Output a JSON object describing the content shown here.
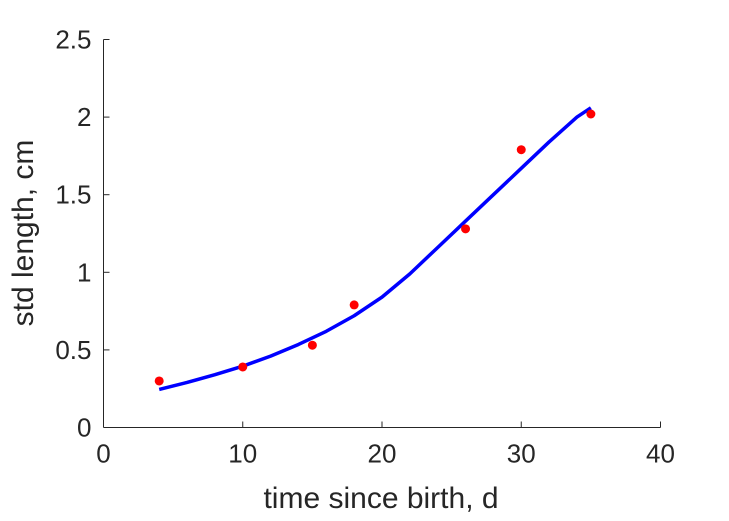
{
  "chart_data": {
    "type": "scatter",
    "xlabel": "time since birth, d",
    "ylabel": "std length, cm",
    "xlim": [
      0,
      40
    ],
    "ylim": [
      0,
      2.5
    ],
    "xticks": [
      "0",
      "10",
      "20",
      "30",
      "40"
    ],
    "yticks": [
      "0",
      "0.5",
      "1",
      "1.5",
      "2",
      "2.5"
    ],
    "grid": false,
    "legend": "none",
    "series": [
      {
        "type": "scatter",
        "color": "#ff0000",
        "x": [
          4,
          10,
          15,
          18,
          26,
          30,
          35
        ],
        "y": [
          0.3,
          0.39,
          0.53,
          0.79,
          1.28,
          1.79,
          2.02
        ]
      },
      {
        "type": "line",
        "color": "#0000ff",
        "x": [
          4,
          6,
          8,
          10,
          12,
          14,
          16,
          18,
          20,
          22,
          24,
          26,
          28,
          30,
          32,
          34,
          35
        ],
        "y": [
          0.245,
          0.29,
          0.34,
          0.395,
          0.46,
          0.535,
          0.62,
          0.72,
          0.84,
          0.99,
          1.16,
          1.33,
          1.5,
          1.67,
          1.84,
          2.0,
          2.06
        ]
      }
    ]
  }
}
